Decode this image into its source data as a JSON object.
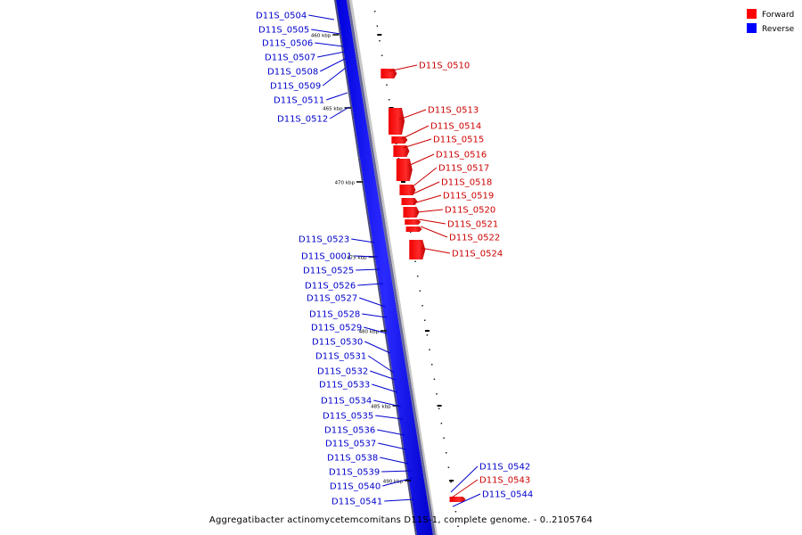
{
  "legend": {
    "forward": {
      "label": "Forward",
      "color": "#ff0000"
    },
    "reverse": {
      "label": "Reverse",
      "color": "#0000ff"
    }
  },
  "caption": "Aggregatibacter actinomycetemcomitans D11S-1, complete genome. - 0..2105764",
  "scale_labels": [
    "460 kbp",
    "465 kbp",
    "470 kbp",
    "475 kbp",
    "480 kbp",
    "485 kbp",
    "490 kbp"
  ],
  "genes_reverse": [
    "D11S_0504",
    "D11S_0505",
    "D11S_0506",
    "D11S_0507",
    "D11S_0508",
    "D11S_0509",
    "D11S_0511",
    "D11S_0512",
    "D11S_0523",
    "D11S_0001",
    "D11S_0525",
    "D11S_0526",
    "D11S_0527",
    "D11S_0528",
    "D11S_0529",
    "D11S_0530",
    "D11S_0531",
    "D11S_0532",
    "D11S_0533",
    "D11S_0534",
    "D11S_0535",
    "D11S_0536",
    "D11S_0537",
    "D11S_0538",
    "D11S_0539",
    "D11S_0540",
    "D11S_0541",
    "D11S_0542",
    "D11S_0544"
  ],
  "genes_forward": [
    "D11S_0510",
    "D11S_0513",
    "D11S_0514",
    "D11S_0515",
    "D11S_0516",
    "D11S_0517",
    "D11S_0518",
    "D11S_0519",
    "D11S_0520",
    "D11S_0521",
    "D11S_0522",
    "D11S_0524",
    "D11S_0543"
  ]
}
